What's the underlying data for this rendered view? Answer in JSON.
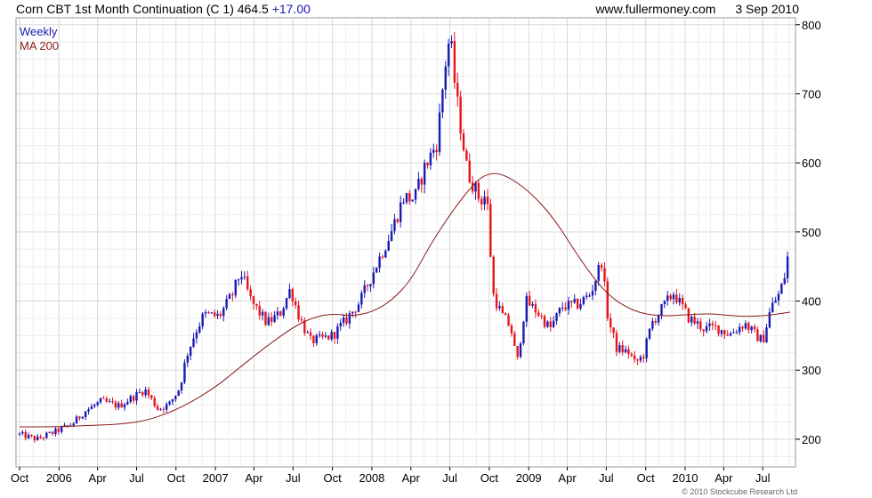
{
  "header": {
    "title": "Corn CBT 1st Month Continuation (C 1)",
    "last": "464.5",
    "change": "+17.00",
    "site": "www.fullermoney.com",
    "date": "3 Sep 2010"
  },
  "footer": {
    "copyright": "© 2010 Stockcube Research Ltd"
  },
  "colors": {
    "up": "#1a1ab4",
    "down": "#e8141c",
    "ma": "#8b1a1a",
    "grid": "#d8d8d8"
  },
  "chart_data": {
    "type": "candlestick",
    "title": "Corn CBT 1st Month Continuation (C 1)",
    "legend": [
      {
        "label": "Weekly",
        "color": "#1a1ab4"
      },
      {
        "label": "MA 200",
        "color": "#8b1a1a"
      }
    ],
    "y_axis": {
      "position": "right",
      "ylim": [
        160,
        810
      ],
      "ticks": [
        200,
        300,
        400,
        500,
        600,
        700,
        800
      ]
    },
    "x_axis": {
      "range": [
        "2005-10-01",
        "2010-09-03"
      ],
      "ticks": [
        {
          "label": "Oct",
          "date": "2005-10-01"
        },
        {
          "label": "2006",
          "date": "2006-01-01"
        },
        {
          "label": "Apr",
          "date": "2006-04-01"
        },
        {
          "label": "Jul",
          "date": "2006-07-01"
        },
        {
          "label": "Oct",
          "date": "2006-10-01"
        },
        {
          "label": "2007",
          "date": "2007-01-01"
        },
        {
          "label": "Apr",
          "date": "2007-04-01"
        },
        {
          "label": "Jul",
          "date": "2007-07-01"
        },
        {
          "label": "Oct",
          "date": "2007-10-01"
        },
        {
          "label": "2008",
          "date": "2008-01-01"
        },
        {
          "label": "Apr",
          "date": "2008-04-01"
        },
        {
          "label": "Jul",
          "date": "2008-07-01"
        },
        {
          "label": "Oct",
          "date": "2008-10-01"
        },
        {
          "label": "2009",
          "date": "2009-01-01"
        },
        {
          "label": "Apr",
          "date": "2009-04-01"
        },
        {
          "label": "Jul",
          "date": "2009-07-01"
        },
        {
          "label": "Oct",
          "date": "2009-10-01"
        },
        {
          "label": "2010",
          "date": "2010-01-01"
        },
        {
          "label": "Apr",
          "date": "2010-04-01"
        },
        {
          "label": "Jul",
          "date": "2010-07-01"
        }
      ]
    },
    "price_path": [
      {
        "date": "2005-10-01",
        "close": 207
      },
      {
        "date": "2005-11-10",
        "close": 200
      },
      {
        "date": "2005-12-20",
        "close": 210
      },
      {
        "date": "2006-02-01",
        "close": 222
      },
      {
        "date": "2006-03-01",
        "close": 240
      },
      {
        "date": "2006-04-10",
        "close": 255
      },
      {
        "date": "2006-05-20",
        "close": 248
      },
      {
        "date": "2006-06-25",
        "close": 262
      },
      {
        "date": "2006-07-20",
        "close": 272
      },
      {
        "date": "2006-08-20",
        "close": 244
      },
      {
        "date": "2006-09-15",
        "close": 250
      },
      {
        "date": "2006-10-10",
        "close": 275
      },
      {
        "date": "2006-10-25",
        "close": 320
      },
      {
        "date": "2006-11-15",
        "close": 355
      },
      {
        "date": "2006-12-05",
        "close": 380
      },
      {
        "date": "2007-01-10",
        "close": 378
      },
      {
        "date": "2007-02-10",
        "close": 410
      },
      {
        "date": "2007-03-01",
        "close": 442
      },
      {
        "date": "2007-03-25",
        "close": 400
      },
      {
        "date": "2007-05-01",
        "close": 368
      },
      {
        "date": "2007-06-01",
        "close": 382
      },
      {
        "date": "2007-06-25",
        "close": 418
      },
      {
        "date": "2007-07-15",
        "close": 378
      },
      {
        "date": "2007-08-10",
        "close": 342
      },
      {
        "date": "2007-09-05",
        "close": 345
      },
      {
        "date": "2007-10-01",
        "close": 350
      },
      {
        "date": "2007-11-01",
        "close": 372
      },
      {
        "date": "2007-12-05",
        "close": 400
      },
      {
        "date": "2008-01-10",
        "close": 450
      },
      {
        "date": "2008-02-15",
        "close": 500
      },
      {
        "date": "2008-03-15",
        "close": 550
      },
      {
        "date": "2008-04-10",
        "close": 548
      },
      {
        "date": "2008-05-01",
        "close": 590
      },
      {
        "date": "2008-06-01",
        "close": 630
      },
      {
        "date": "2008-06-20",
        "close": 742
      },
      {
        "date": "2008-07-01",
        "close": 785
      },
      {
        "date": "2008-07-15",
        "close": 700
      },
      {
        "date": "2008-08-10",
        "close": 590
      },
      {
        "date": "2008-09-10",
        "close": 545
      },
      {
        "date": "2008-09-25",
        "close": 555
      },
      {
        "date": "2008-10-10",
        "close": 410
      },
      {
        "date": "2008-10-30",
        "close": 380
      },
      {
        "date": "2008-11-20",
        "close": 362
      },
      {
        "date": "2008-12-05",
        "close": 310
      },
      {
        "date": "2008-12-25",
        "close": 400
      },
      {
        "date": "2009-01-20",
        "close": 385
      },
      {
        "date": "2009-02-20",
        "close": 360
      },
      {
        "date": "2009-03-20",
        "close": 392
      },
      {
        "date": "2009-04-25",
        "close": 395
      },
      {
        "date": "2009-05-25",
        "close": 410
      },
      {
        "date": "2009-06-10",
        "close": 440
      },
      {
        "date": "2009-06-20",
        "close": 458
      },
      {
        "date": "2009-07-05",
        "close": 375
      },
      {
        "date": "2009-07-25",
        "close": 332
      },
      {
        "date": "2009-08-25",
        "close": 325
      },
      {
        "date": "2009-09-05",
        "close": 310
      },
      {
        "date": "2009-09-25",
        "close": 320
      },
      {
        "date": "2009-10-15",
        "close": 368
      },
      {
        "date": "2009-11-15",
        "close": 395
      },
      {
        "date": "2009-12-05",
        "close": 412
      },
      {
        "date": "2010-01-10",
        "close": 375
      },
      {
        "date": "2010-02-15",
        "close": 360
      },
      {
        "date": "2010-03-15",
        "close": 362
      },
      {
        "date": "2010-04-15",
        "close": 352
      },
      {
        "date": "2010-05-20",
        "close": 368
      },
      {
        "date": "2010-06-15",
        "close": 350
      },
      {
        "date": "2010-07-01",
        "close": 342
      },
      {
        "date": "2010-07-20",
        "close": 390
      },
      {
        "date": "2010-08-10",
        "close": 412
      },
      {
        "date": "2010-09-03",
        "close": 464.5
      }
    ],
    "ma200_path": [
      {
        "date": "2005-10-01",
        "value": 218
      },
      {
        "date": "2006-01-01",
        "value": 218
      },
      {
        "date": "2006-03-15",
        "value": 220
      },
      {
        "date": "2006-06-01",
        "value": 222
      },
      {
        "date": "2006-08-01",
        "value": 228
      },
      {
        "date": "2006-10-15",
        "value": 246
      },
      {
        "date": "2007-01-01",
        "value": 275
      },
      {
        "date": "2007-03-01",
        "value": 305
      },
      {
        "date": "2007-05-01",
        "value": 335
      },
      {
        "date": "2007-07-01",
        "value": 362
      },
      {
        "date": "2007-08-15",
        "value": 376
      },
      {
        "date": "2007-10-01",
        "value": 382
      },
      {
        "date": "2007-11-15",
        "value": 378
      },
      {
        "date": "2008-01-01",
        "value": 384
      },
      {
        "date": "2008-02-15",
        "value": 400
      },
      {
        "date": "2008-04-01",
        "value": 430
      },
      {
        "date": "2008-05-15",
        "value": 480
      },
      {
        "date": "2008-07-01",
        "value": 525
      },
      {
        "date": "2008-08-15",
        "value": 562
      },
      {
        "date": "2008-09-20",
        "value": 584
      },
      {
        "date": "2008-11-01",
        "value": 585
      },
      {
        "date": "2009-01-01",
        "value": 560
      },
      {
        "date": "2009-03-01",
        "value": 520
      },
      {
        "date": "2009-05-01",
        "value": 460
      },
      {
        "date": "2009-07-01",
        "value": 410
      },
      {
        "date": "2009-09-01",
        "value": 385
      },
      {
        "date": "2009-11-01",
        "value": 378
      },
      {
        "date": "2010-01-01",
        "value": 380
      },
      {
        "date": "2010-03-01",
        "value": 382
      },
      {
        "date": "2010-05-01",
        "value": 378
      },
      {
        "date": "2010-07-01",
        "value": 378
      },
      {
        "date": "2010-09-03",
        "value": 384
      }
    ]
  }
}
